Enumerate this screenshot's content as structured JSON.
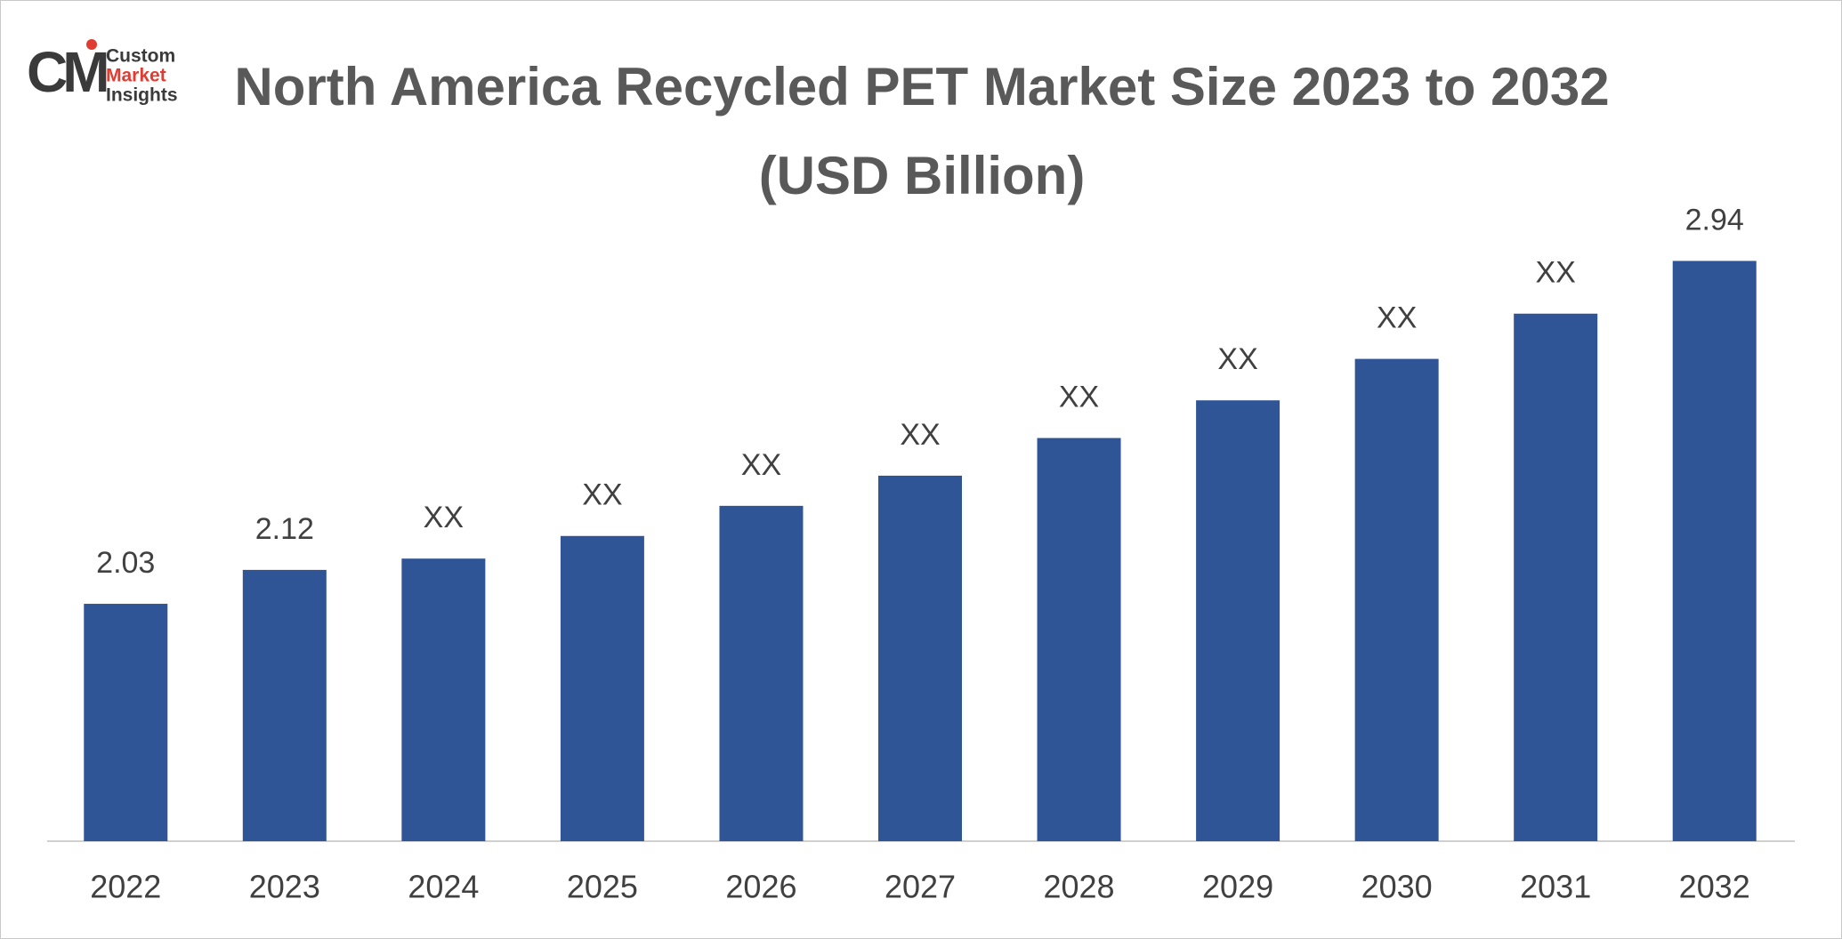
{
  "logo": {
    "mark": "CM",
    "lines": [
      "Custom",
      "Market",
      "Insights"
    ]
  },
  "chart_data": {
    "type": "bar",
    "title": "North America Recycled PET Market Size 2023 to 2032 (USD Billion)",
    "categories": [
      "2022",
      "2023",
      "2024",
      "2025",
      "2026",
      "2027",
      "2028",
      "2029",
      "2030",
      "2031",
      "2032"
    ],
    "values": [
      2.03,
      2.12,
      2.15,
      2.21,
      2.29,
      2.37,
      2.47,
      2.57,
      2.68,
      2.8,
      2.94
    ],
    "value_labels": [
      "2.03",
      "2.12",
      "XX",
      "XX",
      "XX",
      "XX",
      "XX",
      "XX",
      "XX",
      "XX",
      "2.94"
    ],
    "color": "#2f5597",
    "ylim": [
      1.4,
      3.0
    ]
  }
}
